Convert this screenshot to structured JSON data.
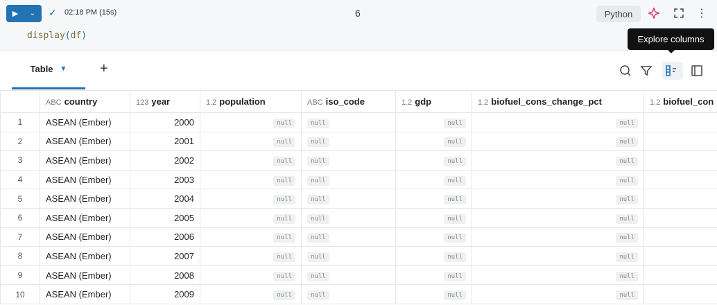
{
  "cell": {
    "status_time": "02:18 PM (15s)",
    "cell_number": "6",
    "code_fn": "display",
    "code_arg": "df",
    "language": "Python"
  },
  "tooltip": "Explore columns",
  "tabs": [
    {
      "label": "Table"
    }
  ],
  "colors": {
    "accent": "#2272b4",
    "tooltip_bg": "#111111"
  },
  "table": {
    "columns": [
      {
        "type": "ABC",
        "name": "country"
      },
      {
        "type": "123",
        "name": "year"
      },
      {
        "type": "1.2",
        "name": "population"
      },
      {
        "type": "ABC",
        "name": "iso_code"
      },
      {
        "type": "1.2",
        "name": "gdp"
      },
      {
        "type": "1.2",
        "name": "biofuel_cons_change_pct"
      },
      {
        "type": "1.2",
        "name": "biofuel_con"
      }
    ],
    "null_label": "null",
    "rows": [
      {
        "idx": "1",
        "country": "ASEAN (Ember)",
        "year": "2000"
      },
      {
        "idx": "2",
        "country": "ASEAN (Ember)",
        "year": "2001"
      },
      {
        "idx": "3",
        "country": "ASEAN (Ember)",
        "year": "2002"
      },
      {
        "idx": "4",
        "country": "ASEAN (Ember)",
        "year": "2003"
      },
      {
        "idx": "5",
        "country": "ASEAN (Ember)",
        "year": "2004"
      },
      {
        "idx": "6",
        "country": "ASEAN (Ember)",
        "year": "2005"
      },
      {
        "idx": "7",
        "country": "ASEAN (Ember)",
        "year": "2006"
      },
      {
        "idx": "8",
        "country": "ASEAN (Ember)",
        "year": "2007"
      },
      {
        "idx": "9",
        "country": "ASEAN (Ember)",
        "year": "2008"
      },
      {
        "idx": "10",
        "country": "ASEAN (Ember)",
        "year": "2009"
      }
    ]
  }
}
